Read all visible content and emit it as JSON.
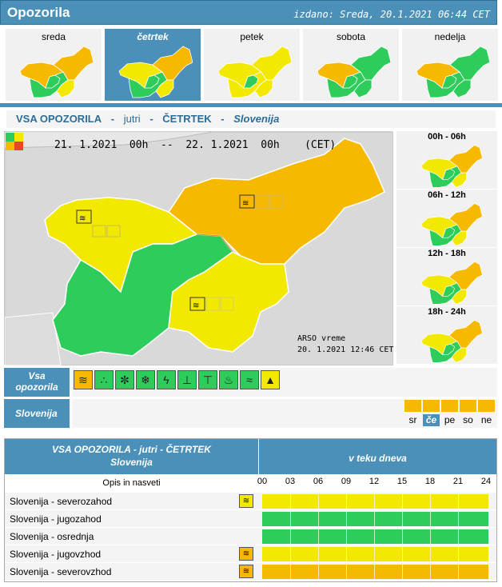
{
  "header": {
    "title": "Opozorila",
    "issued": "izdano: Sreda, 20.1.2021 06:44 CET"
  },
  "days": [
    {
      "label": "sreda",
      "active": false,
      "regions": {
        "nw": "#f7b800",
        "sw": "#2ecc5a",
        "c": "#2ecc5a",
        "se": "#f2e800",
        "ne": "#f7b800"
      }
    },
    {
      "label": "četrtek",
      "active": true,
      "regions": {
        "nw": "#f2e800",
        "sw": "#2ecc5a",
        "c": "#2ecc5a",
        "se": "#f2e800",
        "ne": "#f7b800"
      }
    },
    {
      "label": "petek",
      "active": false,
      "regions": {
        "nw": "#f2e800",
        "sw": "#f2e800",
        "c": "#2ecc5a",
        "se": "#f2e800",
        "ne": "#f2e800"
      }
    },
    {
      "label": "sobota",
      "active": false,
      "regions": {
        "nw": "#f7b800",
        "sw": "#2ecc5a",
        "c": "#2ecc5a",
        "se": "#2ecc5a",
        "ne": "#2ecc5a"
      }
    },
    {
      "label": "nedelja",
      "active": false,
      "regions": {
        "nw": "#f7b800",
        "sw": "#2ecc5a",
        "c": "#2ecc5a",
        "se": "#2ecc5a",
        "ne": "#2ecc5a"
      }
    }
  ],
  "subheader": {
    "a": "VSA OPOZORILA",
    "d1": "-",
    "b": "jutri",
    "d2": "-",
    "c": "ČETRTEK",
    "d3": "-",
    "e": "Slovenija"
  },
  "map": {
    "time_range": "21. 1.2021  00h  --  22. 1.2021  00h    (CET)",
    "credit_line1": "ARSO vreme",
    "credit_line2": "20. 1.2021  12:46 CET",
    "regions": {
      "nw": "#f2e800",
      "sw": "#2ecc5a",
      "c": "#2ecc5a",
      "se": "#f2e800",
      "ne": "#f7b800"
    }
  },
  "periods": [
    {
      "label": "00h - 06h"
    },
    {
      "label": "06h - 12h"
    },
    {
      "label": "12h - 18h"
    },
    {
      "label": "18h - 24h"
    }
  ],
  "vsa_label_1": "Vsa",
  "vsa_label_2": "opozorila",
  "warning_icons": [
    "wind-icon",
    "rain-icon",
    "snow-icon",
    "frost-icon",
    "thunder-icon",
    "heat-icon",
    "cold-icon",
    "fire-icon",
    "fog-icon",
    "avalanche-icon"
  ],
  "region_label": "Slovenija",
  "day_abbr": [
    "sr",
    "če",
    "pe",
    "so",
    "ne"
  ],
  "table": {
    "header_line1": "VSA OPOZORILA - jutri - ČETRTEK",
    "header_line2": "Slovenija",
    "header_right": "v teku dneva",
    "col_label": "Opis in nasveti",
    "hours": [
      "00",
      "03",
      "06",
      "09",
      "12",
      "15",
      "18",
      "21",
      "24"
    ],
    "rows": [
      {
        "name": "Slovenija - severozahod",
        "color": "#f2e800",
        "icon": "wind-icon",
        "icon_color": "#f2e800"
      },
      {
        "name": "Slovenija - jugozahod",
        "color": "#2ecc5a",
        "icon": "",
        "icon_color": ""
      },
      {
        "name": "Slovenija - osrednja",
        "color": "#2ecc5a",
        "icon": "",
        "icon_color": ""
      },
      {
        "name": "Slovenija - jugovzhod",
        "color": "#f2e800",
        "icon": "wind-icon",
        "icon_color": "#f7b800"
      },
      {
        "name": "Slovenija - severovzhod",
        "color": "#f7b800",
        "icon": "wind-icon",
        "icon_color": "#f7b800"
      }
    ]
  },
  "colors": {
    "accent": "#4a90b8",
    "green": "#2ecc5a",
    "yellow": "#f2e800",
    "orange": "#f7b800",
    "red": "#e8452c"
  }
}
